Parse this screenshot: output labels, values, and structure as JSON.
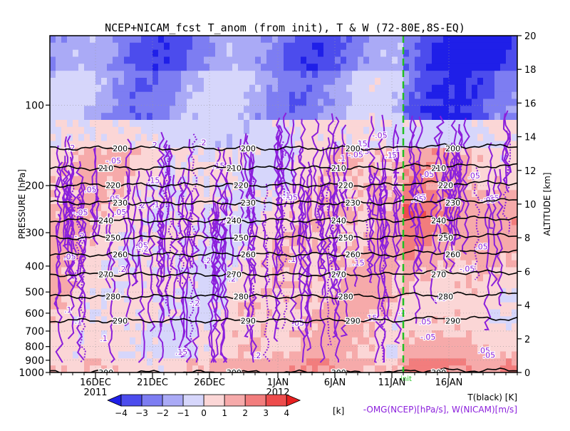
{
  "chart_data": {
    "type": "heatmap",
    "title": "NCEP+NICAM_fcst T_anom (from init), T & W  (72-80E,8S-EQ)",
    "ylabel": "PRESSURE [hPa]",
    "ylabel_right": "ALTITUDE [km]",
    "y_scale": "log",
    "ylim": [
      1000,
      55
    ],
    "pressure_ticks": [
      100,
      200,
      300,
      400,
      500,
      600,
      700,
      800,
      900,
      1000
    ],
    "altitude_ticks": [
      0,
      2,
      4,
      6,
      8,
      10,
      12,
      14,
      16,
      18,
      20
    ],
    "xlim": [
      "2011-12-12",
      "2012-01-22"
    ],
    "x_ticks": [
      {
        "date": "2011-12-16",
        "label": "16DEC"
      },
      {
        "date": "2011-12-21",
        "label": "21DEC"
      },
      {
        "date": "2011-12-26",
        "label": "26DEC"
      },
      {
        "date": "2012-01-01",
        "label": "1JAN"
      },
      {
        "date": "2012-01-06",
        "label": "6JAN"
      },
      {
        "date": "2012-01-11",
        "label": "11JAN"
      },
      {
        "date": "2012-01-16",
        "label": "16JAN"
      }
    ],
    "year_labels": [
      {
        "date": "2011-12-16",
        "label": "2011"
      },
      {
        "date": "2012-01-01",
        "label": "2012"
      }
    ],
    "init_marker": {
      "date": "2012-01-12",
      "label": "init",
      "color": "#22c022"
    },
    "temperature_contours": {
      "legend": "T(black) [K]",
      "color": "#000000",
      "levels": [
        {
          "value": 200,
          "pressure": 145
        },
        {
          "value": 210,
          "pressure": 172
        },
        {
          "value": 220,
          "pressure": 199
        },
        {
          "value": 230,
          "pressure": 232
        },
        {
          "value": 240,
          "pressure": 270
        },
        {
          "value": 250,
          "pressure": 313
        },
        {
          "value": 260,
          "pressure": 362
        },
        {
          "value": 270,
          "pressure": 430
        },
        {
          "value": 280,
          "pressure": 520
        },
        {
          "value": 290,
          "pressure": 640
        },
        {
          "value": 300,
          "pressure": 1000
        }
      ]
    },
    "omega_w_contours": {
      "legend": "-OMG(NCEP)[hPa/s], W(NICAM)[m/s]",
      "color": "#8b1fdc",
      "levels": [
        0.05,
        0.1,
        0.15,
        0.2
      ]
    },
    "anomaly_colorbar": {
      "unit": "[k]",
      "ticks": [
        -4,
        -3,
        -2,
        -1,
        0,
        1,
        2,
        3,
        4
      ],
      "colors": [
        "#1f1fe8",
        "#4c4ced",
        "#7d7df2",
        "#aaaaf6",
        "#d6d6fb",
        "#fbd6d6",
        "#f6aaaa",
        "#f27d7d",
        "#ed4c4c",
        "#e81f1f"
      ]
    }
  }
}
